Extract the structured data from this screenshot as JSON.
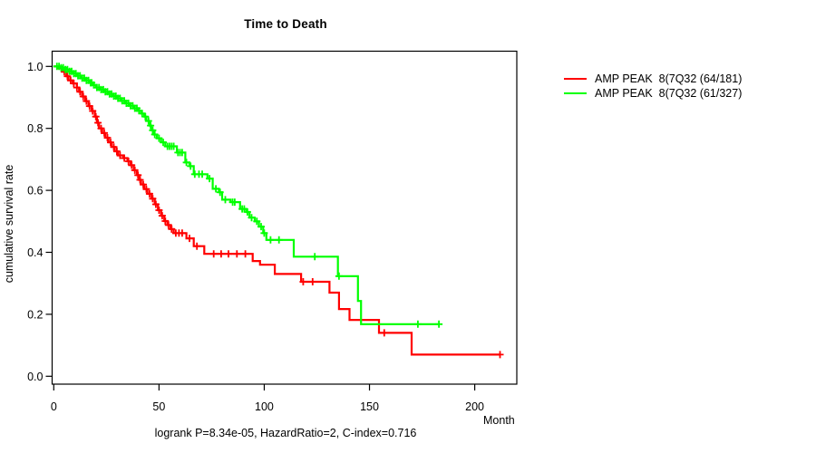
{
  "title": "Time to Death",
  "xlabel": "Month",
  "ylabel": "cumulative survival rate",
  "footer": "logrank P=8.34e-05, HazardRatio=2, C-index=0.716",
  "legend": [
    {
      "label": "AMP PEAK  8(7Q32 (64/181)",
      "color": "#ff0000"
    },
    {
      "label": "AMP PEAK  8(7Q32 (61/327)",
      "color": "#00ff00"
    }
  ],
  "chart_data": {
    "type": "line",
    "subtype": "kaplan-meier-step",
    "title": "Time to Death",
    "xlabel": "Month",
    "ylabel": "cumulative survival rate",
    "xlim": [
      0,
      220
    ],
    "ylim": [
      0.0,
      1.0
    ],
    "xticks": [
      0,
      50,
      100,
      150,
      200
    ],
    "yticks": [
      0.0,
      0.2,
      0.4,
      0.6,
      0.8,
      1.0
    ],
    "grid": false,
    "legend_position": "right-outside",
    "series": [
      {
        "name": "AMP PEAK  8(7Q32 (64/181)",
        "color": "#ff0000",
        "end_month": 212,
        "steps": [
          [
            0,
            1.0
          ],
          [
            2,
            0.994
          ],
          [
            4,
            0.983
          ],
          [
            6,
            0.968
          ],
          [
            7,
            0.955
          ],
          [
            9,
            0.945
          ],
          [
            11,
            0.932
          ],
          [
            12,
            0.918
          ],
          [
            13.5,
            0.903
          ],
          [
            15,
            0.888
          ],
          [
            16.5,
            0.872
          ],
          [
            18,
            0.856
          ],
          [
            19.5,
            0.838
          ],
          [
            20.5,
            0.818
          ],
          [
            21.5,
            0.8
          ],
          [
            23,
            0.785
          ],
          [
            24.5,
            0.77
          ],
          [
            26,
            0.755
          ],
          [
            27.5,
            0.74
          ],
          [
            29,
            0.726
          ],
          [
            30.5,
            0.713
          ],
          [
            33,
            0.704
          ],
          [
            35,
            0.694
          ],
          [
            36.5,
            0.681
          ],
          [
            38,
            0.665
          ],
          [
            39.5,
            0.649
          ],
          [
            40.5,
            0.634
          ],
          [
            41.5,
            0.619
          ],
          [
            43,
            0.604
          ],
          [
            44.5,
            0.589
          ],
          [
            46.5,
            0.573
          ],
          [
            48,
            0.555
          ],
          [
            49.5,
            0.536
          ],
          [
            51,
            0.518
          ],
          [
            52.5,
            0.501
          ],
          [
            54,
            0.488
          ],
          [
            55.5,
            0.475
          ],
          [
            57,
            0.462
          ],
          [
            63,
            0.445
          ],
          [
            66.5,
            0.42
          ],
          [
            71.5,
            0.395
          ],
          [
            94.5,
            0.372
          ],
          [
            98,
            0.36
          ],
          [
            105,
            0.33
          ],
          [
            117.5,
            0.305
          ],
          [
            131,
            0.27
          ],
          [
            135.5,
            0.217
          ],
          [
            140.5,
            0.182
          ],
          [
            154.5,
            0.14
          ],
          [
            170,
            0.07
          ]
        ],
        "censor_months": [
          5,
          6.5,
          8,
          9.5,
          11,
          12.5,
          14,
          15.5,
          17,
          18.5,
          20,
          21,
          22.5,
          24,
          25.5,
          27,
          28.5,
          30,
          31.5,
          33.5,
          35.5,
          37,
          38.5,
          40,
          41,
          42.5,
          44,
          45.5,
          47,
          48.5,
          50,
          51.5,
          53,
          54.5,
          56,
          58,
          59.5,
          61,
          64.5,
          68,
          76,
          79.5,
          83,
          87,
          91,
          118.5,
          123,
          157,
          212
        ]
      },
      {
        "name": "AMP PEAK  8(7Q32 (61/327)",
        "color": "#00ff00",
        "end_month": 183,
        "steps": [
          [
            0,
            1.0
          ],
          [
            3,
            0.996
          ],
          [
            5,
            0.99
          ],
          [
            7,
            0.984
          ],
          [
            9,
            0.977
          ],
          [
            11,
            0.97
          ],
          [
            13,
            0.962
          ],
          [
            15,
            0.955
          ],
          [
            17,
            0.947
          ],
          [
            18.5,
            0.94
          ],
          [
            20,
            0.932
          ],
          [
            22,
            0.925
          ],
          [
            24,
            0.918
          ],
          [
            26,
            0.911
          ],
          [
            28,
            0.904
          ],
          [
            30,
            0.897
          ],
          [
            32,
            0.889
          ],
          [
            34,
            0.881
          ],
          [
            36,
            0.873
          ],
          [
            38,
            0.865
          ],
          [
            40,
            0.857
          ],
          [
            41.5,
            0.848
          ],
          [
            43,
            0.838
          ],
          [
            44,
            0.824
          ],
          [
            45.5,
            0.809
          ],
          [
            46.5,
            0.794
          ],
          [
            47.5,
            0.78
          ],
          [
            49,
            0.768
          ],
          [
            51,
            0.755
          ],
          [
            53,
            0.742
          ],
          [
            58.5,
            0.722
          ],
          [
            62.5,
            0.69
          ],
          [
            64.5,
            0.678
          ],
          [
            66.5,
            0.652
          ],
          [
            73,
            0.638
          ],
          [
            75.5,
            0.605
          ],
          [
            78.5,
            0.594
          ],
          [
            80,
            0.57
          ],
          [
            84,
            0.562
          ],
          [
            88.5,
            0.54
          ],
          [
            91.5,
            0.53
          ],
          [
            93,
            0.512
          ],
          [
            95.5,
            0.5
          ],
          [
            97.5,
            0.483
          ],
          [
            99.5,
            0.462
          ],
          [
            101,
            0.44
          ],
          [
            114,
            0.386
          ],
          [
            135,
            0.323
          ],
          [
            144.5,
            0.243
          ],
          [
            146,
            0.168
          ]
        ],
        "censor_months": [
          1.5,
          2.5,
          3.5,
          4.5,
          5.5,
          6.5,
          7.5,
          8.5,
          9.5,
          10.5,
          11.5,
          12.5,
          13.5,
          14.5,
          15.5,
          16.5,
          17.5,
          18,
          19,
          20.5,
          21.5,
          22.5,
          23.5,
          24.5,
          25.5,
          26.5,
          27.5,
          28.5,
          29.5,
          30.5,
          31.5,
          32.5,
          33.5,
          34.5,
          35.5,
          36.5,
          37.5,
          38.5,
          39.5,
          40.5,
          42,
          43.5,
          45,
          46,
          47,
          48,
          50,
          52,
          54,
          55,
          56,
          57,
          59,
          60,
          61,
          63,
          65,
          67,
          69,
          70.5,
          74,
          77,
          79,
          81.5,
          85,
          86,
          89.5,
          90.5,
          92,
          94,
          96.5,
          98.5,
          100,
          103,
          107,
          124,
          135.5,
          173,
          183
        ]
      }
    ]
  }
}
